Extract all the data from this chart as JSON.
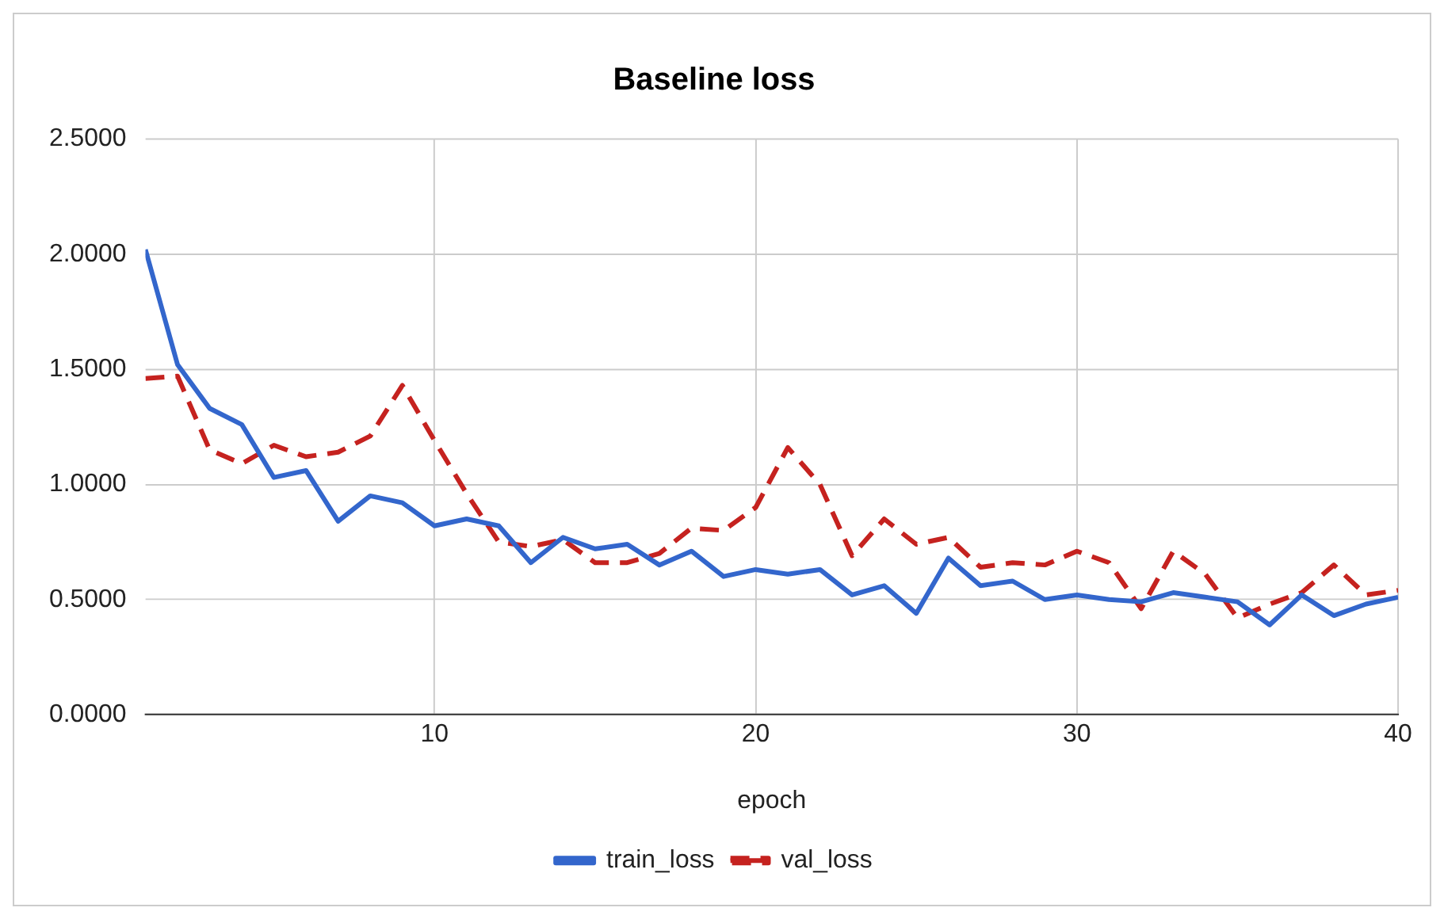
{
  "chart_data": {
    "type": "line",
    "title": "Baseline loss",
    "xlabel": "epoch",
    "x": [
      1,
      2,
      3,
      4,
      5,
      6,
      7,
      8,
      9,
      10,
      11,
      12,
      13,
      14,
      15,
      16,
      17,
      18,
      19,
      20,
      21,
      22,
      23,
      24,
      25,
      26,
      27,
      28,
      29,
      30,
      31,
      32,
      33,
      34,
      35,
      36,
      37,
      38,
      39,
      40
    ],
    "series": [
      {
        "name": "train_loss",
        "color": "#3366cc",
        "line_style": "solid",
        "values": [
          2.02,
          1.52,
          1.33,
          1.26,
          1.03,
          1.06,
          0.84,
          0.95,
          0.92,
          0.82,
          0.85,
          0.82,
          0.66,
          0.77,
          0.72,
          0.74,
          0.65,
          0.71,
          0.6,
          0.63,
          0.61,
          0.63,
          0.52,
          0.56,
          0.44,
          0.68,
          0.56,
          0.58,
          0.5,
          0.52,
          0.5,
          0.49,
          0.53,
          0.51,
          0.49,
          0.39,
          0.52,
          0.43,
          0.48,
          0.51
        ]
      },
      {
        "name": "val_loss",
        "color": "#c5221f",
        "line_style": "dashed",
        "values": [
          1.46,
          1.47,
          1.15,
          1.09,
          1.17,
          1.12,
          1.14,
          1.21,
          1.43,
          1.19,
          0.96,
          0.75,
          0.73,
          0.76,
          0.66,
          0.66,
          0.7,
          0.81,
          0.8,
          0.9,
          1.16,
          1.0,
          0.69,
          0.85,
          0.74,
          0.77,
          0.64,
          0.66,
          0.65,
          0.71,
          0.66,
          0.46,
          0.71,
          0.61,
          0.42,
          0.48,
          0.53,
          0.65,
          0.52,
          0.54
        ]
      }
    ],
    "xlim": [
      1,
      40
    ],
    "xticks": [
      10,
      20,
      30,
      40
    ],
    "ylim": [
      0,
      2.5
    ],
    "yticks": [
      {
        "value": 0,
        "label": "0.0000"
      },
      {
        "value": 0.5,
        "label": "0.5000"
      },
      {
        "value": 1,
        "label": "1.0000"
      },
      {
        "value": 1.5,
        "label": "1.5000"
      },
      {
        "value": 2,
        "label": "2.0000"
      },
      {
        "value": 2.5,
        "label": "2.5000"
      }
    ],
    "grid": true,
    "legend": "bottom",
    "marker": "none"
  }
}
